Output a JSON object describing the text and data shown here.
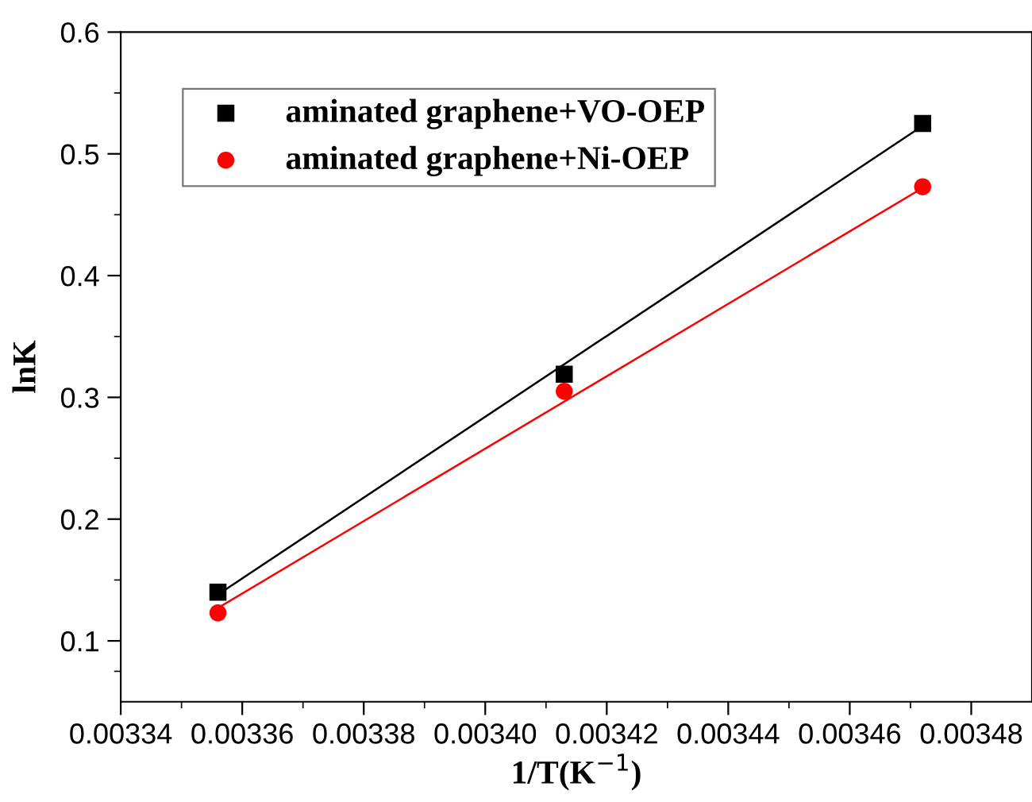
{
  "chart_data": {
    "type": "scatter",
    "xlabel": "1/T(K$^{−1}$)",
    "ylabel": "lnK",
    "xlim": [
      0.00334,
      0.00349
    ],
    "ylim": [
      0.05,
      0.6
    ],
    "xticks": [
      {
        "value": 0.00334,
        "label": "0.00334"
      },
      {
        "value": 0.00336,
        "label": "0.00336"
      },
      {
        "value": 0.00338,
        "label": "0.00338"
      },
      {
        "value": 0.0034,
        "label": "0.00340"
      },
      {
        "value": 0.00342,
        "label": "0.00342"
      },
      {
        "value": 0.00344,
        "label": "0.00344"
      },
      {
        "value": 0.00346,
        "label": "0.00346"
      },
      {
        "value": 0.00348,
        "label": "0.00348"
      }
    ],
    "yticks": [
      0.1,
      0.2,
      0.3,
      0.4,
      0.5,
      0.6
    ],
    "grid": false,
    "legend": "top left",
    "series": [
      {
        "name": "aminated graphene+VO-OEP",
        "marker": "square",
        "color": "#000000",
        "x": [
          0.003356,
          0.003413,
          0.003472
        ],
        "values": [
          0.14,
          0.319,
          0.525
        ]
      },
      {
        "name": "aminated graphene+Ni-OEP",
        "marker": "circle",
        "color": "#ff0000",
        "x": [
          0.003356,
          0.003413,
          0.003472
        ],
        "values": [
          0.123,
          0.305,
          0.473
        ]
      },
      {
        "type": "line",
        "color": "#000000",
        "x": [
          0.003356,
          0.003472
        ],
        "values": [
          0.138,
          0.523
        ]
      },
      {
        "type": "line",
        "color": "#ff0000",
        "x": [
          0.003356,
          0.003472
        ],
        "values": [
          0.127,
          0.472
        ]
      }
    ]
  }
}
